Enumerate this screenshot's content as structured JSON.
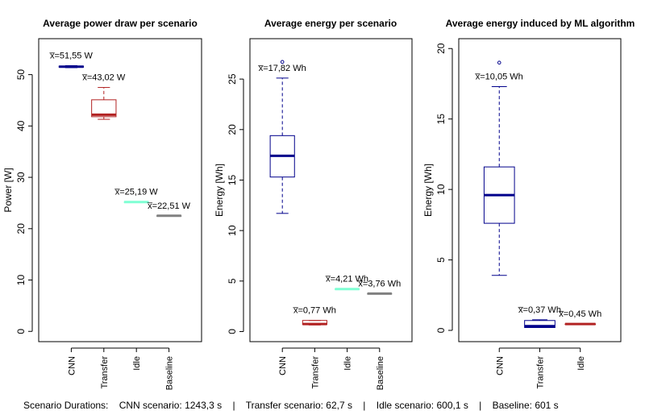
{
  "chart_data": [
    {
      "type": "box",
      "title": "Average power draw per scenario",
      "ylabel": "Power [W]",
      "ylim": [
        -2,
        57
      ],
      "yticks": [
        "0",
        "10",
        "20",
        "30",
        "40",
        "50"
      ],
      "categories": [
        "CNN",
        "Transfer",
        "Idle",
        "Baseline"
      ],
      "boxes": [
        {
          "name": "CNN",
          "color": "#00008b",
          "min": 51.35,
          "q1": 51.45,
          "median": 51.55,
          "q3": 51.65,
          "max": 51.75,
          "mean_label": "x̅=51,55 W",
          "outliers": []
        },
        {
          "name": "Transfer",
          "color": "#b22222",
          "min": 41.3,
          "q1": 41.8,
          "median": 42.2,
          "q3": 45.1,
          "max": 47.5,
          "mean_label": "x̅=43,02 W",
          "outliers": []
        },
        {
          "name": "Idle",
          "color": "#7fffd4",
          "min": 25.19,
          "q1": 25.19,
          "median": 25.19,
          "q3": 25.19,
          "max": 25.19,
          "mean_label": "x̅=25,19 W",
          "outliers": []
        },
        {
          "name": "Baseline",
          "color": "#808080",
          "min": 22.51,
          "q1": 22.51,
          "median": 22.51,
          "q3": 22.51,
          "max": 22.51,
          "mean_label": "x̅=22,51 W",
          "outliers": []
        }
      ]
    },
    {
      "type": "box",
      "title": "Average energy per scenario",
      "ylabel": "Energy [Wh]",
      "ylim": [
        -1,
        29
      ],
      "yticks": [
        "0",
        "5",
        "10",
        "15",
        "20",
        "25"
      ],
      "categories": [
        "CNN",
        "Transfer",
        "Idle",
        "Baseline"
      ],
      "boxes": [
        {
          "name": "CNN",
          "color": "#00008b",
          "min": 11.7,
          "q1": 15.3,
          "median": 17.4,
          "q3": 19.4,
          "max": 25.1,
          "mean_label": "x̅=17,82 Wh",
          "outliers": [
            26.7
          ]
        },
        {
          "name": "Transfer",
          "color": "#b22222",
          "min": 0.65,
          "q1": 0.7,
          "median": 0.75,
          "q3": 1.1,
          "max": 1.1,
          "mean_label": "x̅=0,77 Wh",
          "outliers": []
        },
        {
          "name": "Idle",
          "color": "#7fffd4",
          "min": 4.21,
          "q1": 4.21,
          "median": 4.21,
          "q3": 4.21,
          "max": 4.21,
          "mean_label": "x̅=4,21 Wh",
          "outliers": []
        },
        {
          "name": "Baseline",
          "color": "#808080",
          "min": 3.76,
          "q1": 3.76,
          "median": 3.76,
          "q3": 3.76,
          "max": 3.76,
          "mean_label": "x̅=3,76 Wh",
          "outliers": []
        }
      ]
    },
    {
      "type": "box",
      "title": "Average energy induced by ML algorithm",
      "ylabel": "Energy [Wh]",
      "ylim": [
        -0.8,
        20.7
      ],
      "yticks": [
        "0",
        "5",
        "10",
        "15",
        "20"
      ],
      "categories": [
        "CNN",
        "Transfer",
        "Idle"
      ],
      "boxes": [
        {
          "name": "CNN",
          "color": "#00008b",
          "min": 3.9,
          "q1": 7.6,
          "median": 9.6,
          "q3": 11.6,
          "max": 17.3,
          "mean_label": "x̅=10,05 Wh",
          "outliers": [
            19
          ]
        },
        {
          "name": "Transfer",
          "color": "#00008b",
          "min": 0.2,
          "q1": 0.2,
          "median": 0.3,
          "q3": 0.7,
          "max": 0.75,
          "mean_label": "x̅=0,37 Wh",
          "outliers": []
        },
        {
          "name": "Idle",
          "color": "#b22222",
          "min": 0.45,
          "q1": 0.45,
          "median": 0.45,
          "q3": 0.45,
          "max": 0.45,
          "mean_label": "x̅=0,45 Wh",
          "outliers": []
        }
      ]
    }
  ],
  "footer": "Scenario Durations:    CNN scenario: 1243,3 s    |    Transfer scenario: 62,7 s    |    Idle scenario: 600,1 s    |    Baseline: 601 s"
}
